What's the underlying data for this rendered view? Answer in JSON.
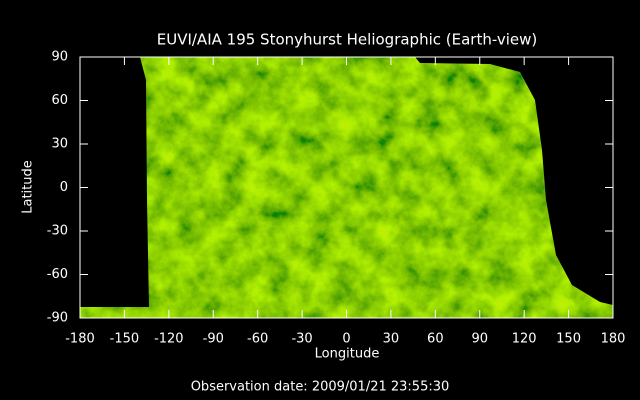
{
  "chart_data": {
    "type": "map",
    "title": "EUVI/AIA 195 Stonyhurst Heliographic (Earth-view)",
    "x_label": "Longitude",
    "y_label": "Latitude",
    "footer": "Observation date: 2009/01/21 23:55:30",
    "xlim": [
      -180,
      180
    ],
    "ylim": [
      -90,
      90
    ],
    "xticks": [
      -180,
      -150,
      -120,
      -90,
      -60,
      -30,
      0,
      30,
      60,
      90,
      120,
      150,
      180
    ],
    "yticks": [
      -90,
      -60,
      -30,
      0,
      30,
      60,
      90
    ]
  }
}
